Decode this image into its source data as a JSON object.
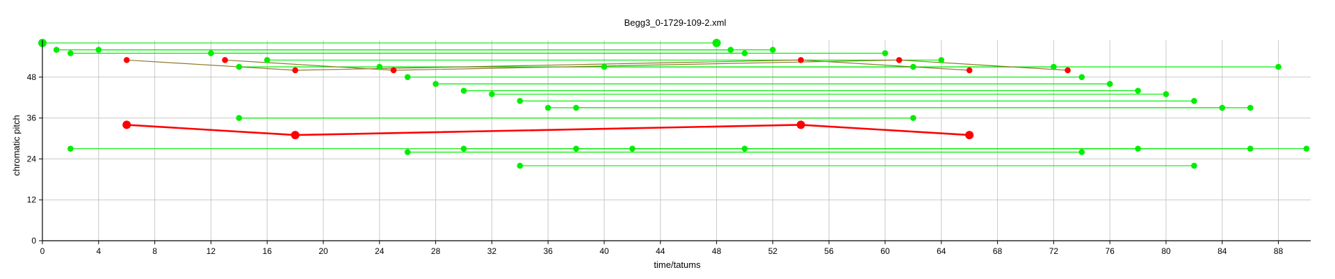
{
  "chart_data": {
    "type": "scatter",
    "title": "Begg3_0-1729-109-2.xml",
    "xlabel": "time/tatums",
    "ylabel": "chromatic pitch",
    "xlim": [
      0,
      90
    ],
    "ylim": [
      0,
      58
    ],
    "xticks": [
      "0",
      "4",
      "8",
      "12",
      "16",
      "20",
      "24",
      "28",
      "32",
      "36",
      "40",
      "44",
      "48",
      "52",
      "56",
      "60",
      "64",
      "68",
      "72",
      "76",
      "80",
      "84",
      "88"
    ],
    "yticks": [
      "0",
      "12",
      "24",
      "36",
      "48"
    ],
    "grid": true,
    "colors": {
      "green": "#00ee00",
      "red": "#ff0000",
      "olive": "#8b7a2a",
      "grid": "#c8c8c8"
    },
    "green_segments": [
      {
        "x": [
          0,
          48
        ],
        "y": 58
      },
      {
        "x": [
          1,
          49
        ],
        "y": 56
      },
      {
        "x": [
          2,
          50
        ],
        "y": 55
      },
      {
        "x": [
          4,
          52
        ],
        "y": 56
      },
      {
        "x": [
          12,
          60
        ],
        "y": 55
      },
      {
        "x": [
          14,
          62
        ],
        "y": 51
      },
      {
        "x": [
          16,
          64
        ],
        "y": 53
      },
      {
        "x": [
          24,
          72
        ],
        "y": 51
      },
      {
        "x": [
          26,
          74
        ],
        "y": 48
      },
      {
        "x": [
          28,
          76
        ],
        "y": 46
      },
      {
        "x": [
          30,
          78
        ],
        "y": 44
      },
      {
        "x": [
          32,
          80
        ],
        "y": 43
      },
      {
        "x": [
          34,
          82
        ],
        "y": 41
      },
      {
        "x": [
          36,
          84
        ],
        "y": 39
      },
      {
        "x": [
          38,
          86
        ],
        "y": 39
      },
      {
        "x": [
          40,
          88
        ],
        "y": 51
      },
      {
        "x": [
          14,
          62
        ],
        "y": 36
      },
      {
        "x": [
          2,
          50
        ],
        "y": 27
      },
      {
        "x": [
          26,
          74
        ],
        "y": 26
      },
      {
        "x": [
          30,
          78
        ],
        "y": 27
      },
      {
        "x": [
          34,
          82
        ],
        "y": 22
      },
      {
        "x": [
          38,
          86
        ],
        "y": 27
      },
      {
        "x": [
          42,
          90
        ],
        "y": 27
      }
    ],
    "large_green_points": [
      [
        0,
        58
      ],
      [
        48,
        58
      ]
    ],
    "red_thin_lines": [
      {
        "x": [
          6,
          18,
          54,
          66
        ],
        "y": [
          53,
          50,
          53,
          50
        ]
      },
      {
        "x": [
          13,
          25,
          61,
          73
        ],
        "y": [
          53,
          50,
          53,
          50
        ]
      }
    ],
    "red_thick_line": {
      "x": [
        6,
        18,
        54,
        66
      ],
      "y": [
        34,
        31,
        34,
        31
      ]
    }
  }
}
